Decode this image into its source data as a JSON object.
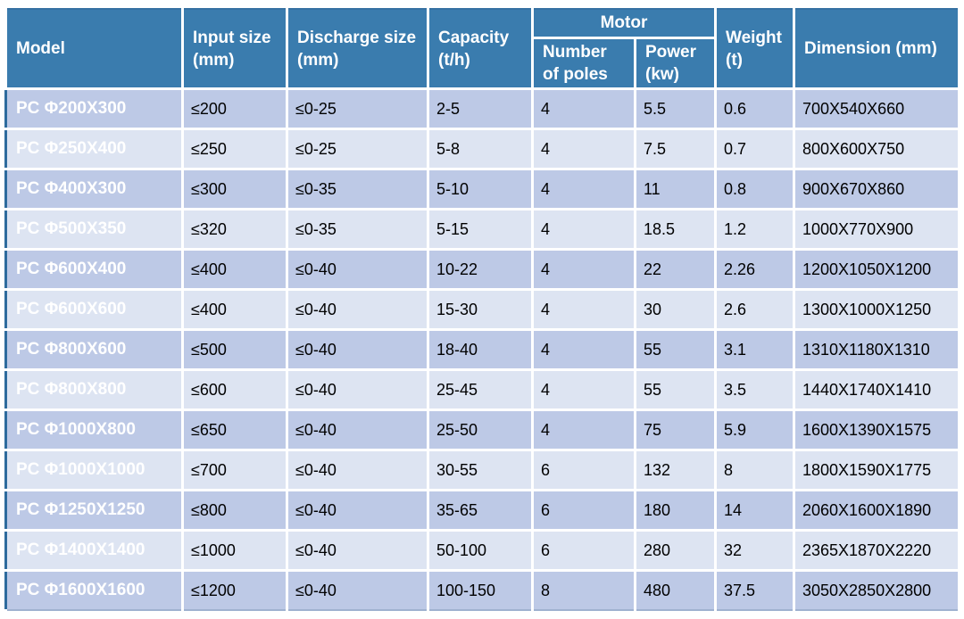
{
  "colors": {
    "header_bg": "#3A7CAE",
    "model_column_bg": "#3A7CAE",
    "row_odd_bg": "#BDC9E6",
    "row_even_bg": "#DDE4F2",
    "grid_line": "#FFFFFF",
    "outer_left_edge": "#2E6B9D",
    "outer_top_edge": "#3671A2",
    "outer_bottom_edge": "#9FB2D0",
    "header_text": "#FFFFFF",
    "cell_text": "#000000"
  },
  "table": {
    "header": {
      "model": "Model",
      "input_size": "Input size (mm)",
      "discharge_size": "Discharge size (mm)",
      "capacity": "Capacity (t/h)",
      "motor": "Motor",
      "number_of_poles": "Number of poles",
      "power": "Power (kw)",
      "weight": "Weight (t)",
      "dimension": "Dimension (mm)"
    },
    "rows": [
      {
        "model": "PC Φ200X300",
        "input_size": "≤200",
        "discharge_size": "≤0-25",
        "capacity": "2-5",
        "poles": "4",
        "power": "5.5",
        "weight": "0.6",
        "dimension": "700X540X660"
      },
      {
        "model": "PC Φ250X400",
        "input_size": "≤250",
        "discharge_size": "≤0-25",
        "capacity": "5-8",
        "poles": "4",
        "power": "7.5",
        "weight": "0.7",
        "dimension": "800X600X750"
      },
      {
        "model": "PC Φ400X300",
        "input_size": "≤300",
        "discharge_size": "≤0-35",
        "capacity": "5-10",
        "poles": "4",
        "power": "11",
        "weight": "0.8",
        "dimension": "900X670X860"
      },
      {
        "model": "PC Φ500X350",
        "input_size": "≤320",
        "discharge_size": "≤0-35",
        "capacity": "5-15",
        "poles": "4",
        "power": "18.5",
        "weight": "1.2",
        "dimension": "1000X770X900"
      },
      {
        "model": "PC Φ600X400",
        "input_size": "≤400",
        "discharge_size": "≤0-40",
        "capacity": "10-22",
        "poles": "4",
        "power": "22",
        "weight": "2.26",
        "dimension": "1200X1050X1200"
      },
      {
        "model": "PC Φ600X600",
        "input_size": "≤400",
        "discharge_size": "≤0-40",
        "capacity": "15-30",
        "poles": "4",
        "power": "30",
        "weight": "2.6",
        "dimension": "1300X1000X1250"
      },
      {
        "model": "PC Φ800X600",
        "input_size": "≤500",
        "discharge_size": "≤0-40",
        "capacity": "18-40",
        "poles": "4",
        "power": "55",
        "weight": "3.1",
        "dimension": "1310X1180X1310"
      },
      {
        "model": "PC Φ800X800",
        "input_size": "≤600",
        "discharge_size": "≤0-40",
        "capacity": "25-45",
        "poles": "4",
        "power": "55",
        "weight": "3.5",
        "dimension": "1440X1740X1410"
      },
      {
        "model": "PC Φ1000X800",
        "input_size": "≤650",
        "discharge_size": "≤0-40",
        "capacity": "25-50",
        "poles": "4",
        "power": "75",
        "weight": "5.9",
        "dimension": "1600X1390X1575"
      },
      {
        "model": "PC Φ1000X1000",
        "input_size": "≤700",
        "discharge_size": "≤0-40",
        "capacity": "30-55",
        "poles": "6",
        "power": "132",
        "weight": "8",
        "dimension": "1800X1590X1775"
      },
      {
        "model": "PC Φ1250X1250",
        "input_size": "≤800",
        "discharge_size": "≤0-40",
        "capacity": "35-65",
        "poles": "6",
        "power": "180",
        "weight": "14",
        "dimension": "2060X1600X1890"
      },
      {
        "model": "PC Φ1400X1400",
        "input_size": "≤1000",
        "discharge_size": "≤0-40",
        "capacity": "50-100",
        "poles": "6",
        "power": "280",
        "weight": "32",
        "dimension": "2365X1870X2220"
      },
      {
        "model": "PC Φ1600X1600",
        "input_size": "≤1200",
        "discharge_size": "≤0-40",
        "capacity": "100-150",
        "poles": "8",
        "power": "480",
        "weight": "37.5",
        "dimension": "3050X2850X2800"
      }
    ]
  }
}
